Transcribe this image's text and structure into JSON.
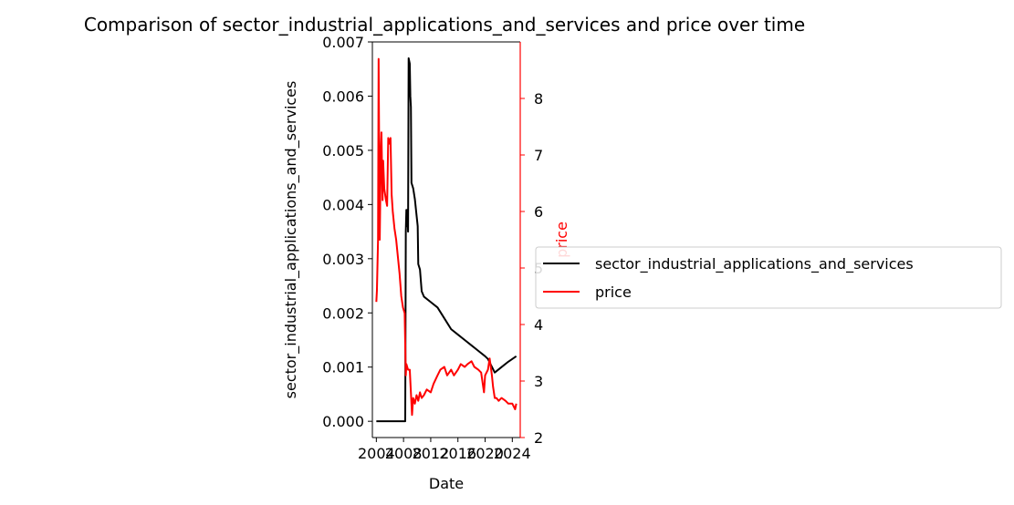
{
  "chart_data": {
    "type": "line",
    "title": "Comparison of sector_industrial_applications_and_services and price over time",
    "xlabel": "Date",
    "ylabel_left": "sector_industrial_applications_and_services",
    "ylabel_right": "price",
    "x_ticks": [
      "2004",
      "2008",
      "2012",
      "2016",
      "2020",
      "2024"
    ],
    "xlim": [
      "2003-06",
      "2025-03"
    ],
    "ylim_left": [
      -0.0003,
      0.007
    ],
    "ylim_right": [
      2.0,
      9.0
    ],
    "y_ticks_left": [
      "0.000",
      "0.001",
      "0.002",
      "0.003",
      "0.004",
      "0.005",
      "0.006",
      "0.007"
    ],
    "y_ticks_right": [
      "2",
      "3",
      "4",
      "5",
      "6",
      "7",
      "8"
    ],
    "legend_position": "center-right outside",
    "series": [
      {
        "name": "sector_industrial_applications_and_services",
        "color": "#000000",
        "axis": "left",
        "points": [
          [
            "2004-01",
            0.0
          ],
          [
            "2005-06",
            0.0
          ],
          [
            "2007-01",
            0.0
          ],
          [
            "2008-04",
            0.0
          ],
          [
            "2008-05",
            0.0035
          ],
          [
            "2008-06",
            0.0039
          ],
          [
            "2008-07",
            0.0036
          ],
          [
            "2008-08",
            0.0039
          ],
          [
            "2008-09",
            0.0035
          ],
          [
            "2008-10",
            0.0067
          ],
          [
            "2008-12",
            0.0066
          ],
          [
            "2009-01",
            0.006
          ],
          [
            "2009-02",
            0.0058
          ],
          [
            "2009-03",
            0.0044
          ],
          [
            "2009-06",
            0.0043
          ],
          [
            "2009-09",
            0.0041
          ],
          [
            "2009-12",
            0.0038
          ],
          [
            "2010-02",
            0.0036
          ],
          [
            "2010-03",
            0.0029
          ],
          [
            "2010-06",
            0.0028
          ],
          [
            "2010-09",
            0.0024
          ],
          [
            "2011-01",
            0.0023
          ],
          [
            "2012-01",
            0.0022
          ],
          [
            "2013-01",
            0.0021
          ],
          [
            "2014-01",
            0.0019
          ],
          [
            "2015-01",
            0.0017
          ],
          [
            "2016-01",
            0.0016
          ],
          [
            "2017-01",
            0.0015
          ],
          [
            "2018-01",
            0.0014
          ],
          [
            "2019-01",
            0.0013
          ],
          [
            "2020-01",
            0.0012
          ],
          [
            "2020-06",
            0.00115
          ],
          [
            "2021-06",
            0.0009
          ],
          [
            "2022-06",
            0.001
          ],
          [
            "2023-06",
            0.0011
          ],
          [
            "2024-08",
            0.0012
          ]
        ]
      },
      {
        "name": "price",
        "color": "#ff0000",
        "axis": "right",
        "points": [
          [
            "2004-01",
            4.4
          ],
          [
            "2004-02",
            4.6
          ],
          [
            "2004-04",
            5.5
          ],
          [
            "2004-05",
            8.7
          ],
          [
            "2004-07",
            5.5
          ],
          [
            "2004-09",
            7.1
          ],
          [
            "2004-10",
            7.4
          ],
          [
            "2004-12",
            6.2
          ],
          [
            "2005-01",
            6.9
          ],
          [
            "2005-03",
            6.4
          ],
          [
            "2005-06",
            6.2
          ],
          [
            "2005-08",
            6.1
          ],
          [
            "2005-10",
            7.3
          ],
          [
            "2005-12",
            7.2
          ],
          [
            "2006-02",
            7.3
          ],
          [
            "2006-04",
            6.3
          ],
          [
            "2006-06",
            6.0
          ],
          [
            "2006-09",
            5.7
          ],
          [
            "2006-12",
            5.5
          ],
          [
            "2007-03",
            5.2
          ],
          [
            "2007-06",
            4.9
          ],
          [
            "2007-09",
            4.5
          ],
          [
            "2007-12",
            4.3
          ],
          [
            "2008-03",
            4.2
          ],
          [
            "2008-05",
            3.1
          ],
          [
            "2008-06",
            3.3
          ],
          [
            "2008-09",
            3.2
          ],
          [
            "2008-12",
            3.2
          ],
          [
            "2009-02",
            2.8
          ],
          [
            "2009-04",
            2.4
          ],
          [
            "2009-06",
            2.7
          ],
          [
            "2009-09",
            2.6
          ],
          [
            "2009-12",
            2.75
          ],
          [
            "2010-03",
            2.65
          ],
          [
            "2010-06",
            2.8
          ],
          [
            "2010-09",
            2.7
          ],
          [
            "2011-01",
            2.75
          ],
          [
            "2011-06",
            2.85
          ],
          [
            "2012-01",
            2.8
          ],
          [
            "2012-06",
            2.95
          ],
          [
            "2013-01",
            3.1
          ],
          [
            "2013-06",
            3.2
          ],
          [
            "2014-01",
            3.25
          ],
          [
            "2014-06",
            3.1
          ],
          [
            "2015-01",
            3.2
          ],
          [
            "2015-06",
            3.1
          ],
          [
            "2016-01",
            3.2
          ],
          [
            "2016-06",
            3.3
          ],
          [
            "2017-01",
            3.25
          ],
          [
            "2017-06",
            3.3
          ],
          [
            "2018-01",
            3.35
          ],
          [
            "2018-06",
            3.25
          ],
          [
            "2019-01",
            3.2
          ],
          [
            "2019-06",
            3.15
          ],
          [
            "2019-11",
            2.8
          ],
          [
            "2020-01",
            3.1
          ],
          [
            "2020-06",
            3.2
          ],
          [
            "2020-09",
            3.4
          ],
          [
            "2021-01",
            3.1
          ],
          [
            "2021-03",
            2.9
          ],
          [
            "2021-06",
            2.7
          ],
          [
            "2021-09",
            2.7
          ],
          [
            "2022-01",
            2.65
          ],
          [
            "2022-06",
            2.7
          ],
          [
            "2023-01",
            2.65
          ],
          [
            "2023-06",
            2.6
          ],
          [
            "2024-01",
            2.6
          ],
          [
            "2024-06",
            2.5
          ],
          [
            "2024-08",
            2.6
          ]
        ]
      }
    ]
  }
}
